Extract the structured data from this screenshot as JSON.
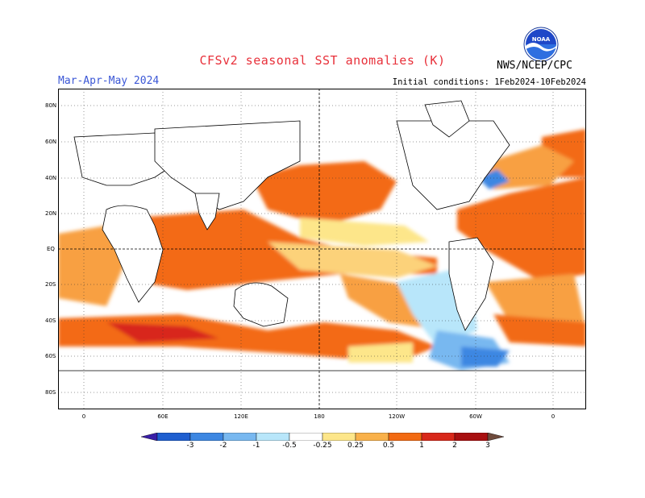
{
  "header": {
    "title": "CFSv2 seasonal SST anomalies (K)",
    "season": "Mar-Apr-May 2024",
    "initial_conditions": "Initial conditions: 1Feb2024-10Feb2024",
    "organization": "NWS/NCEP/CPC",
    "logo_text": "NOAA"
  },
  "map": {
    "lat_labels": [
      "80N",
      "60N",
      "40N",
      "20N",
      "EQ",
      "20S",
      "40S",
      "60S",
      "80S"
    ],
    "lon_labels": [
      "0",
      "60E",
      "120E",
      "180",
      "120W",
      "60W",
      "0"
    ]
  },
  "colorbar": {
    "labels": [
      "-3",
      "-2",
      "-1",
      "-0.5",
      "-0.25",
      "0.25",
      "0.5",
      "1",
      "2",
      "3"
    ],
    "colors": [
      "#3a1fa8",
      "#1f5fd0",
      "#3d87e2",
      "#78b8f0",
      "#b8e6fa",
      "#ffffff",
      "#fde68a",
      "#f9b14a",
      "#f26a12",
      "#d8281a",
      "#a80f10",
      "#6e4a3c"
    ]
  }
}
